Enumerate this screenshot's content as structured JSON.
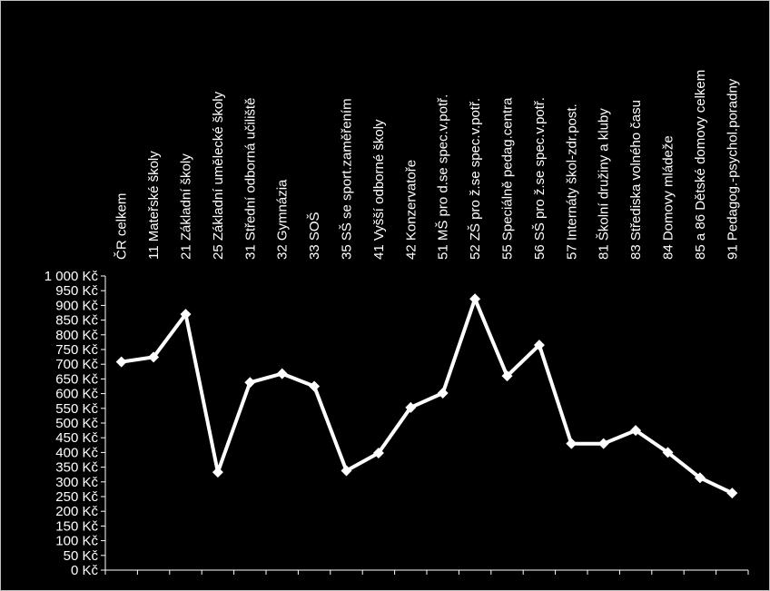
{
  "chart_data": {
    "type": "line",
    "title": "",
    "xlabel": "",
    "ylabel": "",
    "ylim": [
      0,
      1000
    ],
    "y_ticks": [
      0,
      50,
      100,
      150,
      200,
      250,
      300,
      350,
      400,
      450,
      500,
      550,
      600,
      650,
      700,
      750,
      800,
      850,
      900,
      950,
      1000
    ],
    "y_unit": "Kč",
    "y_tick_labels": [
      "0 Kč",
      "50 Kč",
      "100 Kč",
      "150 Kč",
      "200 Kč",
      "250 Kč",
      "300 Kč",
      "350 Kč",
      "400 Kč",
      "450 Kč",
      "500 Kč",
      "550 Kč",
      "600 Kč",
      "650 Kč",
      "700 Kč",
      "750 Kč",
      "800 Kč",
      "850 Kč",
      "900 Kč",
      "950 Kč",
      "1 000 Kč"
    ],
    "categories": [
      "ČR celkem",
      "11 Mateřské školy",
      "21 Základní školy",
      "25 Základní umělecké školy",
      "31 Střední odborná učiliště",
      "32 Gymnázia",
      "33 SOŠ",
      "35 SŠ se sport.zaměřením",
      "41 Vyšší odborné školy",
      "42 Konzervatoře",
      "51 MŠ pro d.se spec.v.potř.",
      "52 ZŠ pro ž.se spec.v.potř.",
      "55 Speciálně pedag.centra",
      "56 SŠ pro ž.se spec.v.potř.",
      "57 Internáty škol-zdr.post.",
      "81 Školní družiny a kluby",
      "83 Střediska volného času",
      "84 Domovy mládeže",
      "85 a 86 Dětské domovy celkem",
      "91 Pedagog.-psychol.poradny"
    ],
    "series": [
      {
        "values": [
          708,
          724,
          870,
          333,
          638,
          668,
          625,
          338,
          398,
          553,
          602,
          922,
          660,
          765,
          430,
          430,
          475,
          400,
          314,
          262
        ],
        "color": "#ffffff",
        "marker": "diamond"
      }
    ],
    "grid": false,
    "legend": "none"
  }
}
